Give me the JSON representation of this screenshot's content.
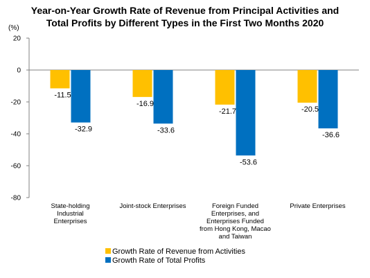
{
  "chart_data": {
    "type": "bar",
    "title": [
      "Year-on-Year Growth Rate of Revenue from Principal Activities and",
      "Total Profits by Different Types in the First Two Months 2020"
    ],
    "unit_label": "(%)",
    "ylim": [
      -80,
      20
    ],
    "yticks": [
      "20",
      "0",
      "-20",
      "-40",
      "-60",
      "-80"
    ],
    "ytick_values": [
      20,
      0,
      -20,
      -40,
      -60,
      -80
    ],
    "categories": [
      [
        "State-holding",
        "Industrial",
        "Enterprises"
      ],
      [
        "Joint-stock Enterprises"
      ],
      [
        "Foreign Funded",
        "Enterprises, and",
        "Enterprises Funded",
        "from Hong Kong, Macao",
        "and Taiwan"
      ],
      [
        "Private Enterprises"
      ]
    ],
    "series": [
      {
        "name": "Growth Rate of Revenue from Activities",
        "color": "#FFC000",
        "values": [
          -11.5,
          -16.9,
          -21.7,
          -20.5
        ],
        "labels": [
          "-11.5",
          "-16.9",
          "-21.7",
          "-20.5"
        ]
      },
      {
        "name": "Growth Rate of Total Profits",
        "color": "#0070C0",
        "values": [
          -32.9,
          -33.6,
          -53.6,
          -36.6
        ],
        "labels": [
          "-32.9",
          "-33.6",
          "-53.6",
          "-36.6"
        ]
      }
    ],
    "grid": false,
    "legend_position": "bottom"
  }
}
